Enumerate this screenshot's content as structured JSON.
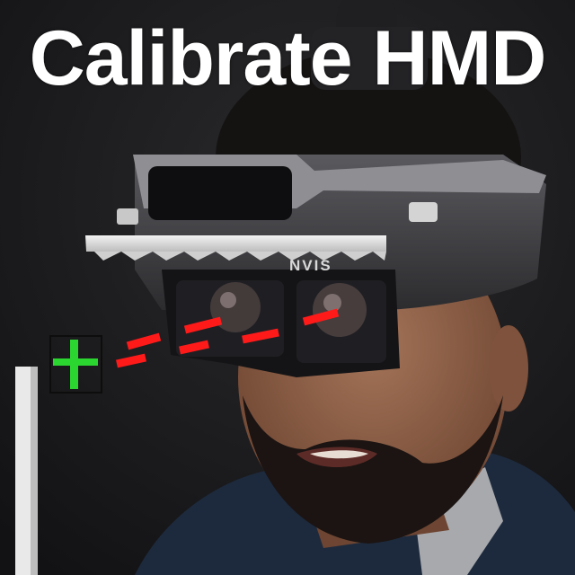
{
  "headline": "Calibrate HMD",
  "headset_brand": "NVIS",
  "colors": {
    "headline": "#ffffff",
    "crosshair": "#2bd631",
    "alignment_line": "#ff1a1a",
    "target_frame": "#0d0d0d"
  },
  "icons": {
    "calibration_target": "green-crosshair",
    "alignment_guide": "red-dashed-line"
  }
}
